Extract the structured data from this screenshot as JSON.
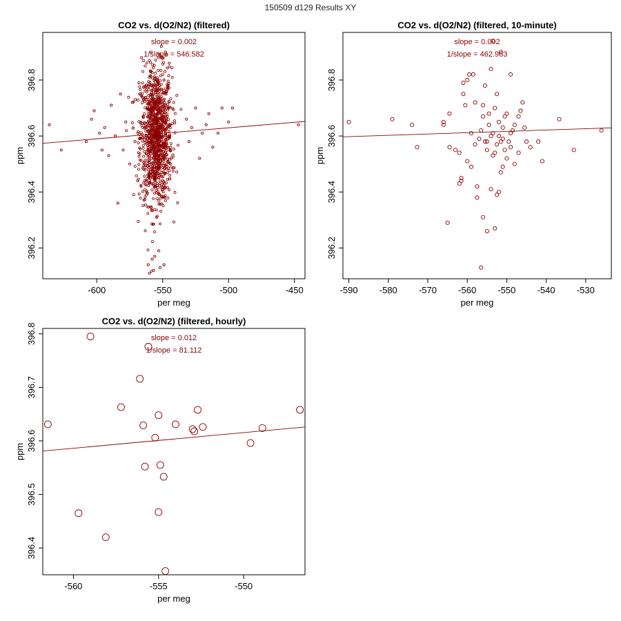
{
  "figure": {
    "title": "150509   d129   Results XY"
  },
  "colors": {
    "series": "#8b0000",
    "axis": "#000000",
    "background": "#ffffff"
  },
  "chart_data": [
    {
      "type": "scatter",
      "title": "CO2 vs. d(O2/N2) (filtered)",
      "xlabel": "per meg",
      "ylabel": "ppm",
      "xlim": [
        -641,
        -442
      ],
      "ylim": [
        396.09,
        396.97
      ],
      "xticks": [
        -600,
        -550,
        -500,
        -450
      ],
      "yticks": [
        396.2,
        396.4,
        396.6,
        396.8
      ],
      "annotations": [
        "slope = 0.002",
        "1/slope = 546.582"
      ],
      "fit_line": [
        [
          -641,
          396.574
        ],
        [
          -442,
          396.652
        ]
      ],
      "marker_size": "small",
      "dense_cloud": {
        "n": 1100,
        "x_center": -555,
        "x_sd": 6,
        "y_center": 396.6,
        "y_sd": 0.12,
        "y_min": 396.11,
        "y_max": 396.92
      },
      "points": [
        [
          -636,
          396.64
        ],
        [
          -627,
          396.55
        ],
        [
          -608,
          396.58
        ],
        [
          -604,
          396.66
        ],
        [
          -602,
          396.69
        ],
        [
          -598,
          396.61
        ],
        [
          -596,
          396.55
        ],
        [
          -594,
          396.63
        ],
        [
          -591,
          396.53
        ],
        [
          -589,
          396.71
        ],
        [
          -586,
          396.6
        ],
        [
          -584,
          396.36
        ],
        [
          -582,
          396.75
        ],
        [
          -580,
          396.55
        ],
        [
          -578,
          396.65
        ],
        [
          -575,
          396.5
        ],
        [
          -573,
          396.72
        ],
        [
          -571,
          396.58
        ],
        [
          -569,
          396.44
        ],
        [
          -568,
          396.79
        ],
        [
          -566,
          396.88
        ],
        [
          -532,
          396.66
        ],
        [
          -530,
          396.58
        ],
        [
          -528,
          396.63
        ],
        [
          -525,
          396.7
        ],
        [
          -522,
          396.52
        ],
        [
          -520,
          396.61
        ],
        [
          -517,
          396.64
        ],
        [
          -515,
          396.68
        ],
        [
          -512,
          396.56
        ],
        [
          -508,
          396.61
        ],
        [
          -505,
          396.7
        ],
        [
          -500,
          396.65
        ],
        [
          -497,
          396.7
        ],
        [
          -447,
          396.64
        ],
        [
          -561,
          396.14
        ],
        [
          -558,
          396.16
        ],
        [
          -560,
          396.11
        ],
        [
          -557,
          396.12
        ],
        [
          -552,
          396.13
        ],
        [
          -549,
          396.14
        ],
        [
          -553,
          396.19
        ],
        [
          -556,
          396.17
        ],
        [
          -548,
          396.9
        ],
        [
          -551,
          396.92
        ],
        [
          -545,
          396.86
        ],
        [
          -547,
          396.89
        ]
      ]
    },
    {
      "type": "scatter",
      "title": "CO2 vs. d(O2/N2) (filtered, 10-minute)",
      "xlabel": "per meg",
      "ylabel": "ppm",
      "xlim": [
        -591.5,
        -523.5
      ],
      "ylim": [
        396.09,
        396.97
      ],
      "xticks": [
        -590,
        -580,
        -570,
        -560,
        -550,
        -540,
        -530
      ],
      "yticks": [
        396.2,
        396.4,
        396.6,
        396.8
      ],
      "annotations": [
        "slope = 0.002",
        "1/slope = 462.963"
      ],
      "fit_line": [
        [
          -591.5,
          396.597
        ],
        [
          -523.5,
          396.629
        ]
      ],
      "marker_size": "medium",
      "points": [
        [
          -590,
          396.65
        ],
        [
          -579,
          396.66
        ],
        [
          -574,
          396.64
        ],
        [
          -572.7,
          396.56
        ],
        [
          -566,
          396.65
        ],
        [
          -566,
          396.64
        ],
        [
          -565,
          396.29
        ],
        [
          -564.5,
          396.68
        ],
        [
          -564.5,
          396.56
        ],
        [
          -563,
          396.55
        ],
        [
          -562,
          396.54
        ],
        [
          -562,
          396.43
        ],
        [
          -561.5,
          396.44
        ],
        [
          -561.5,
          396.45
        ],
        [
          -561,
          396.79
        ],
        [
          -561,
          396.75
        ],
        [
          -560.5,
          396.71
        ],
        [
          -560,
          396.8
        ],
        [
          -560,
          396.51
        ],
        [
          -559.5,
          396.82
        ],
        [
          -559,
          396.61
        ],
        [
          -559,
          396.49
        ],
        [
          -558.5,
          396.82
        ],
        [
          -558,
          396.72
        ],
        [
          -558,
          396.57
        ],
        [
          -557.5,
          396.42
        ],
        [
          -557.5,
          396.38
        ],
        [
          -557,
          396.59
        ],
        [
          -556.5,
          396.62
        ],
        [
          -556.5,
          396.13
        ],
        [
          -556,
          396.71
        ],
        [
          -556,
          396.67
        ],
        [
          -556,
          396.31
        ],
        [
          -555.5,
          396.78
        ],
        [
          -555.5,
          396.58
        ],
        [
          -555,
          396.58
        ],
        [
          -555,
          396.55
        ],
        [
          -554.5,
          396.68
        ],
        [
          -554.5,
          396.64
        ],
        [
          -554,
          396.6
        ],
        [
          -554,
          396.41
        ],
        [
          -553.5,
          396.61
        ],
        [
          -553.5,
          396.53
        ],
        [
          -553,
          396.7
        ],
        [
          -553,
          396.54
        ],
        [
          -552.5,
          396.75
        ],
        [
          -552.5,
          396.57
        ],
        [
          -552,
          396.65
        ],
        [
          -552,
          396.6
        ],
        [
          -551.5,
          396.58
        ],
        [
          -551.5,
          396.47
        ],
        [
          -551,
          396.63
        ],
        [
          -551,
          396.49
        ],
        [
          -550.5,
          396.67
        ],
        [
          -550.5,
          396.55
        ],
        [
          -550,
          396.68
        ],
        [
          -550,
          396.52
        ],
        [
          -549.5,
          396.58
        ],
        [
          -549,
          396.56
        ],
        [
          -549,
          396.61
        ],
        [
          -548.5,
          396.62
        ],
        [
          -548,
          396.64
        ],
        [
          -548,
          396.5
        ],
        [
          -547,
          396.67
        ],
        [
          -547,
          396.54
        ],
        [
          -546.5,
          396.69
        ],
        [
          -546,
          396.72
        ],
        [
          -545.5,
          396.63
        ],
        [
          -545,
          396.58
        ],
        [
          -554,
          396.84
        ],
        [
          -553.5,
          396.94
        ],
        [
          -551.5,
          396.9
        ],
        [
          -549,
          396.82
        ],
        [
          -544,
          396.56
        ],
        [
          -542,
          396.58
        ],
        [
          -541,
          396.51
        ],
        [
          -536.7,
          396.66
        ],
        [
          -533,
          396.55
        ],
        [
          -526,
          396.62
        ],
        [
          -555,
          396.26
        ],
        [
          -553,
          396.27
        ],
        [
          -552,
          396.4
        ],
        [
          -552.5,
          396.39
        ],
        [
          -551,
          396.59
        ]
      ]
    },
    {
      "type": "scatter",
      "title": "CO2 vs. d(O2/N2) (filtered, hourly)",
      "xlabel": "per meg",
      "ylabel": "ppm",
      "xlim": [
        -561.8,
        -546.4
      ],
      "ylim": [
        396.35,
        396.81
      ],
      "xticks": [
        -560,
        -555,
        -550
      ],
      "yticks": [
        396.4,
        396.5,
        396.6,
        396.7,
        396.8
      ],
      "annotations": [
        "slope = 0.012",
        "1/slope = 81.112"
      ],
      "fit_line": [
        [
          -561.8,
          396.581
        ],
        [
          -546.4,
          396.626
        ]
      ],
      "marker_size": "large",
      "points": [
        [
          -561.5,
          396.631
        ],
        [
          -559.7,
          396.465
        ],
        [
          -559.0,
          396.795
        ],
        [
          -558.1,
          396.42
        ],
        [
          -557.2,
          396.663
        ],
        [
          -556.1,
          396.716
        ],
        [
          -555.9,
          396.629
        ],
        [
          -555.8,
          396.552
        ],
        [
          -555.6,
          396.776
        ],
        [
          -555.2,
          396.606
        ],
        [
          -555.0,
          396.467
        ],
        [
          -555.0,
          396.648
        ],
        [
          -554.9,
          396.555
        ],
        [
          -554.7,
          396.533
        ],
        [
          -554.6,
          396.357
        ],
        [
          -554.0,
          396.631
        ],
        [
          -553.0,
          396.622
        ],
        [
          -552.9,
          396.618
        ],
        [
          -552.7,
          396.658
        ],
        [
          -552.4,
          396.626
        ],
        [
          -549.6,
          396.596
        ],
        [
          -548.9,
          396.624
        ],
        [
          -546.7,
          396.658
        ]
      ]
    }
  ]
}
